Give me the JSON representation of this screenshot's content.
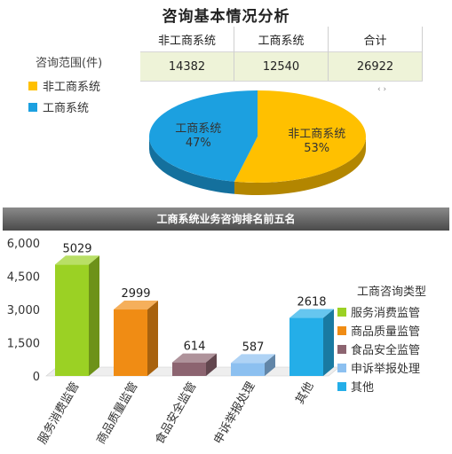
{
  "title": "咨询基本情况分析",
  "summary_table": {
    "row_label": "咨询范围(件)",
    "headers": [
      "非工商系统",
      "工商系统",
      "合计"
    ],
    "values": [
      "14382",
      "12540",
      "26922"
    ]
  },
  "scroll_mark": "‹ ›",
  "banner": "工商系统业务咨询排名前五名",
  "chart_data": [
    {
      "type": "pie",
      "legend_placement": "left",
      "slices": [
        {
          "name": "非工商系统",
          "value": 14382,
          "percent_label": "53%",
          "color": "#FFC000"
        },
        {
          "name": "工商系统",
          "value": 12540,
          "percent_label": "47%",
          "color": "#1CA0E0"
        }
      ]
    },
    {
      "type": "bar",
      "title": "工商系统业务咨询排名前五名",
      "legend_title": "工商咨询类型",
      "legend_placement": "right",
      "categories": [
        "服务消费监管",
        "商品质量监管",
        "食品安全监管",
        "申诉举报处理",
        "其他"
      ],
      "values": [
        5029,
        2999,
        614,
        587,
        2618
      ],
      "colors": [
        "#9BD124",
        "#F08C14",
        "#8C6470",
        "#8CC0F0",
        "#24AEE8"
      ],
      "ylim": [
        0,
        6000
      ],
      "yticks": [
        0,
        1500,
        3000,
        4500,
        6000
      ],
      "ytick_labels": [
        "0",
        "1,500",
        "3,000",
        "4,500",
        "6,000"
      ],
      "grid": false
    }
  ]
}
